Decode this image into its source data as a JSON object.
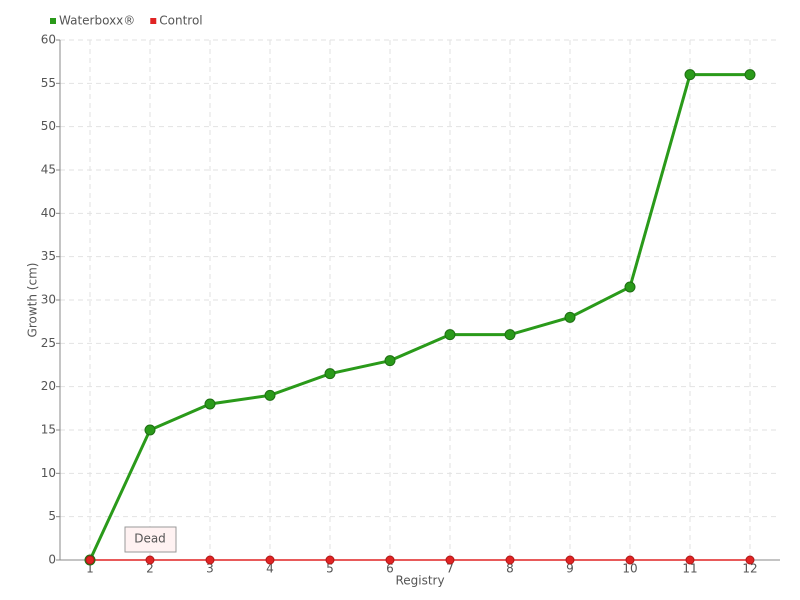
{
  "chart_data": {
    "type": "line",
    "x_label": "Registry",
    "y_label": "Growth (cm)",
    "categories": [
      "1",
      "2",
      "3",
      "4",
      "5",
      "6",
      "7",
      "8",
      "9",
      "10",
      "11",
      "12"
    ],
    "series": [
      {
        "name": "Waterboxx®",
        "color": "#2a9a1a",
        "values": [
          0,
          15,
          18,
          19,
          21.5,
          23,
          26,
          26,
          28,
          31.5,
          56,
          56
        ]
      },
      {
        "name": "Control",
        "color": "#e02424",
        "values": [
          0,
          0,
          0,
          0,
          0,
          0,
          0,
          0,
          0,
          0,
          0,
          0
        ]
      }
    ],
    "annotation": "Dead",
    "ylim": [
      0,
      60
    ],
    "yticks": [
      0,
      5,
      10,
      15,
      20,
      25,
      30,
      35,
      40,
      45,
      50,
      55,
      60
    ],
    "grid": true
  }
}
